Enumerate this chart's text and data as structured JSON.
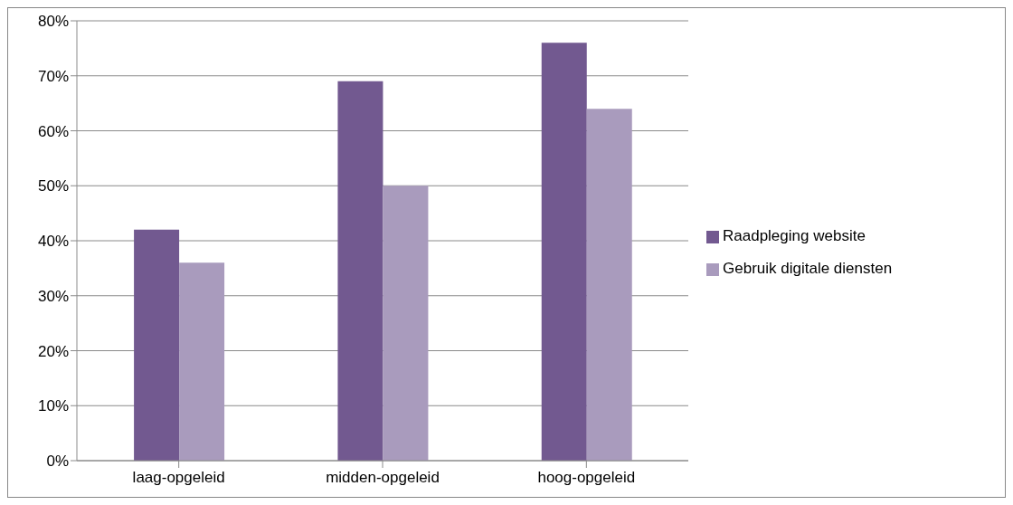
{
  "chart_data": {
    "type": "bar",
    "categories": [
      "laag-opgeleid",
      "midden-opgeleid",
      "hoog-opgeleid"
    ],
    "series": [
      {
        "name": "Raadpleging website",
        "color": "#725990",
        "values": [
          42,
          69,
          76
        ]
      },
      {
        "name": "Gebruik digitale diensten",
        "color": "#a99bbd",
        "values": [
          36,
          50,
          64
        ]
      }
    ],
    "ylim": [
      0,
      80
    ],
    "yticks": [
      {
        "value": 0,
        "label": "0%"
      },
      {
        "value": 10,
        "label": "10%"
      },
      {
        "value": 20,
        "label": "20%"
      },
      {
        "value": 30,
        "label": "30%"
      },
      {
        "value": 40,
        "label": "40%"
      },
      {
        "value": 50,
        "label": "50%"
      },
      {
        "value": 60,
        "label": "60%"
      },
      {
        "value": 70,
        "label": "70%"
      },
      {
        "value": 80,
        "label": "80%"
      }
    ],
    "grid": "y",
    "legend": "right"
  }
}
